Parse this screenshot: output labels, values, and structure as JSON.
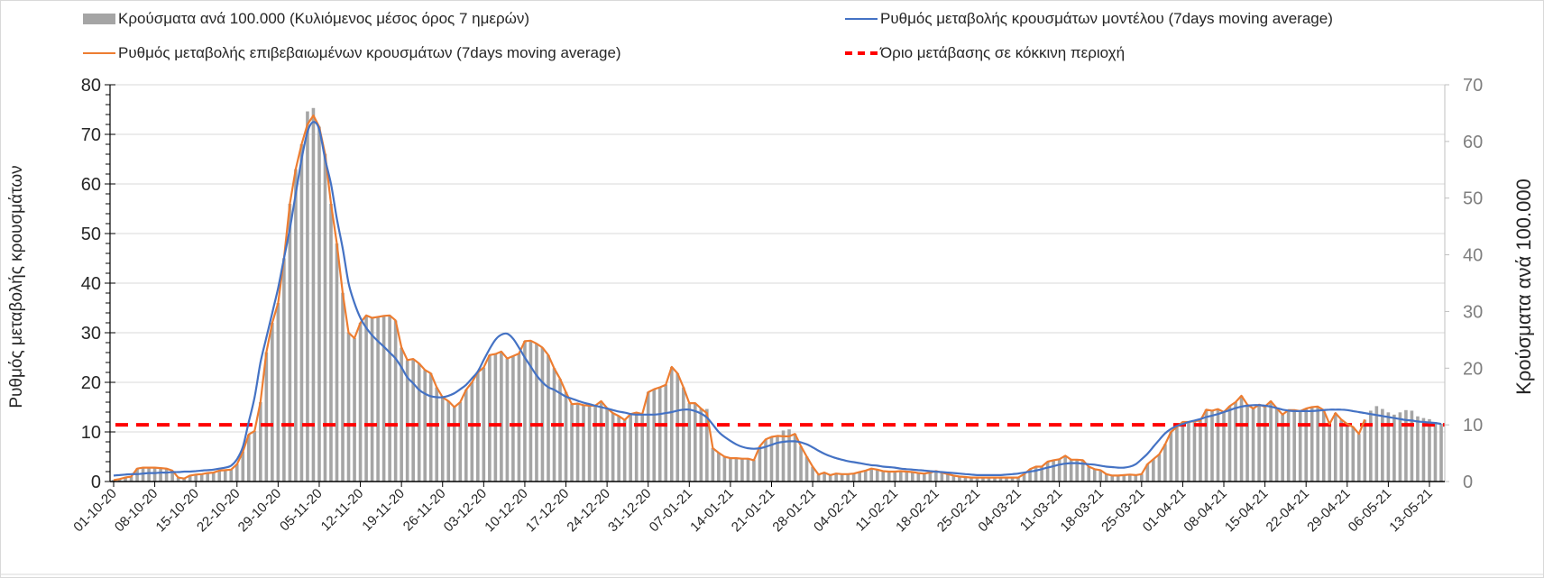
{
  "legend": {
    "bars": "Κρούσματα ανά 100.000 (Κυλιόμενος μέσος όρος 7 ημερών)",
    "model": "Ρυθμός μεταβολής κρουσμάτων μοντέλου (7days moving average)",
    "confirmed": "Ρυθμός μεταβολής επιβεβαιωμένων κρουσμάτων (7days moving average)",
    "threshold": "Όριο μετάβασης σε κόκκινη περιοχή"
  },
  "chart_data": {
    "type": "bar+line",
    "start_date": "01-10-20",
    "ylabel_left": "Ρυθμός μεταβολής κρουσμάτων",
    "ylabel_right": "Κρούσματα ανά 100.000",
    "ylim_left": [
      0,
      80
    ],
    "ylim_right": [
      0,
      70
    ],
    "yticks_left": [
      "0",
      "10",
      "20",
      "30",
      "40",
      "50",
      "60",
      "70",
      "80"
    ],
    "yticks_right": [
      "0",
      "10",
      "20",
      "30",
      "40",
      "50",
      "60",
      "70"
    ],
    "grid": true,
    "legend_position": "top",
    "xtick_every_days": 7,
    "xticks": [
      "01-10-20",
      "08-10-20",
      "15-10-20",
      "22-10-20",
      "29-10-20",
      "05-11-20",
      "12-11-20",
      "19-11-20",
      "26-11-20",
      "03-12-20",
      "10-12-20",
      "17-12-20",
      "24-12-20",
      "31-12-20",
      "07-01-21",
      "14-01-21",
      "21-01-21",
      "28-01-21",
      "04-02-21",
      "11-02-21",
      "18-02-21",
      "25-02-21",
      "04-03-21",
      "11-03-21",
      "18-03-21",
      "25-03-21",
      "01-04-21",
      "08-04-21",
      "15-04-21",
      "22-04-21",
      "29-04-21",
      "06-05-21",
      "13-05-21"
    ],
    "threshold_right_axis": 10,
    "colors": {
      "bars": "#a5a5a5",
      "model": "#4472c4",
      "confirmed": "#ed7d31",
      "threshold": "#ff0000"
    },
    "series": [
      {
        "name": "Κρούσματα ανά 100.000 (Κυλιόμενος μέσος όρος 7 ημερών)",
        "axis": "right",
        "kind": "bar",
        "values": [
          0.3,
          0.4,
          0.7,
          0.9,
          2.3,
          2.5,
          2.5,
          2.5,
          2.4,
          2.3,
          1.9,
          0.7,
          0.5,
          1.1,
          1.2,
          1.3,
          1.5,
          1.6,
          1.9,
          2.0,
          2.1,
          3.1,
          5.3,
          8.3,
          8.9,
          14,
          22.8,
          28,
          31.5,
          39.4,
          49,
          55.1,
          59.5,
          65.3,
          65.9,
          62.6,
          57.8,
          49,
          42,
          33.3,
          26.3,
          25.3,
          28,
          29.3,
          28.9,
          29.1,
          29.2,
          29.3,
          28.4,
          23.6,
          21.4,
          21.6,
          20.8,
          19.7,
          19.1,
          16.6,
          14.9,
          14.2,
          13.1,
          14,
          16.2,
          17.5,
          19.3,
          20.1,
          22.3,
          22.5,
          22.9,
          21.7,
          22.1,
          22.6,
          24.8,
          24.9,
          24.3,
          23.6,
          22.3,
          20,
          18.1,
          15.8,
          13.7,
          13.7,
          13.5,
          13.4,
          13.4,
          14.2,
          13,
          12.1,
          11.6,
          10.9,
          11.9,
          12.2,
          11.9,
          15.8,
          16.3,
          16.6,
          17.1,
          20.2,
          19.1,
          16.6,
          13.8,
          13.8,
          12.9,
          12.8,
          5.9,
          5.1,
          4.4,
          4.1,
          4.1,
          4.0,
          4.0,
          3.8,
          6.2,
          7.4,
          7.9,
          8.1,
          9.0,
          9.2,
          8.4,
          6.2,
          4.4,
          2.6,
          1.2,
          1.6,
          1.1,
          1.4,
          1.3,
          1.3,
          1.4,
          1.7,
          1.9,
          2.3,
          2.1,
          1.8,
          1.8,
          1.8,
          1.8,
          1.8,
          1.7,
          1.5,
          1.4,
          1.6,
          1.8,
          1.6,
          1.3,
          1.1,
          0.9,
          0.8,
          0.7,
          0.7,
          0.7,
          0.7,
          0.7,
          0.7,
          0.7,
          0.7,
          0.7,
          1.3,
          2.2,
          2.6,
          2.6,
          3.5,
          3.8,
          3.9,
          4.6,
          3.9,
          3.9,
          3.8,
          2.6,
          2.2,
          2.0,
          1.3,
          1.1,
          1.1,
          1.1,
          1.2,
          1.1,
          1.3,
          3.1,
          3.9,
          4.8,
          6.6,
          8.8,
          9.6,
          10.5,
          10.5,
          10.7,
          10.8,
          12.7,
          12.5,
          12.8,
          12.3,
          13.3,
          14,
          15.1,
          13.6,
          12.9,
          13.6,
          13.2,
          14.2,
          13,
          11.8,
          12.6,
          12.6,
          12.4,
          12.9,
          13.1,
          13.2,
          12.6,
          10.2,
          12.1,
          10.9,
          10.2,
          9.6,
          8.4,
          10.9,
          12.5,
          13.3,
          12.8,
          12.2,
          11.8,
          12.2,
          12.6,
          12.5,
          11.5,
          11.2,
          11,
          10.5,
          10.2
        ]
      },
      {
        "name": "Ρυθμός μεταβολής επιβεβαιωμένων κρουσμάτων (7days moving average)",
        "axis": "left",
        "kind": "line",
        "values": [
          0.3,
          0.5,
          0.8,
          1.0,
          2.6,
          2.8,
          2.8,
          2.8,
          2.7,
          2.6,
          2.2,
          0.8,
          0.6,
          1.2,
          1.4,
          1.5,
          1.7,
          1.8,
          2.2,
          2.3,
          2.4,
          3.5,
          6,
          9.5,
          10.2,
          16,
          26,
          32,
          36,
          45,
          56,
          63,
          68,
          72,
          73.8,
          71.5,
          66,
          56,
          48,
          38,
          30,
          28.9,
          32,
          33.5,
          33,
          33.2,
          33.4,
          33.5,
          32.5,
          27,
          24.5,
          24.7,
          23.8,
          22.5,
          21.8,
          19,
          17,
          16.2,
          15,
          16,
          18.5,
          20,
          22,
          23,
          25.5,
          25.7,
          26.2,
          24.8,
          25.3,
          25.8,
          28.3,
          28.4,
          27.8,
          27,
          25.5,
          22.8,
          20.7,
          18,
          15.6,
          15.7,
          15.4,
          15.3,
          15.3,
          16.2,
          14.8,
          13.8,
          13.2,
          12.4,
          13.6,
          13.9,
          13.6,
          18,
          18.6,
          19,
          19.5,
          23.1,
          21.8,
          19,
          15.8,
          15.8,
          14.7,
          13.8,
          6.7,
          5.8,
          5.0,
          4.7,
          4.7,
          4.6,
          4.6,
          4.3,
          7.1,
          8.5,
          9,
          9.2,
          9.1,
          9.1,
          9.6,
          7.1,
          5,
          3,
          1.4,
          1.8,
          1.3,
          1.6,
          1.5,
          1.5,
          1.6,
          1.9,
          2.2,
          2.6,
          2.4,
          2.1,
          2,
          2,
          2.1,
          2,
          1.9,
          1.7,
          1.6,
          1.8,
          2.1,
          1.8,
          1.5,
          1.2,
          1,
          0.9,
          0.8,
          0.8,
          0.8,
          0.8,
          0.8,
          0.8,
          0.8,
          0.8,
          0.8,
          1.5,
          2.5,
          3,
          3,
          4,
          4.3,
          4.5,
          5.2,
          4.4,
          4.4,
          4.3,
          3,
          2.5,
          2.3,
          1.5,
          1.2,
          1.2,
          1.3,
          1.4,
          1.3,
          1.5,
          3.5,
          4.5,
          5.5,
          7.5,
          10,
          11,
          12,
          12,
          12.2,
          12.3,
          14.5,
          14.3,
          14.6,
          14,
          15.2,
          16,
          17.3,
          15.5,
          14.7,
          15.5,
          15.1,
          16.2,
          14.8,
          13.5,
          14.4,
          14.4,
          14.2,
          14.7,
          15,
          15.1,
          14.4,
          11.6,
          13.8,
          12.5,
          11.6,
          11,
          9.6,
          12.5
        ]
      },
      {
        "name": "Ρυθμός μεταβολής κρουσμάτων μοντέλου (7days moving average)",
        "axis": "left",
        "kind": "line",
        "values": [
          1.2,
          1.3,
          1.4,
          1.5,
          1.5,
          1.6,
          1.7,
          1.7,
          1.8,
          1.8,
          1.9,
          1.9,
          2.0,
          2.0,
          2.1,
          2.2,
          2.3,
          2.4,
          2.6,
          2.8,
          3.2,
          4.5,
          7,
          12,
          17,
          24,
          29,
          34,
          39,
          45,
          51,
          58,
          65,
          70.5,
          72.5,
          71,
          65,
          60,
          53,
          47,
          40,
          36,
          33,
          31,
          29.5,
          28.3,
          27.2,
          26,
          24.8,
          23,
          21,
          19.8,
          18.5,
          17.7,
          17.2,
          17,
          17,
          17.3,
          17.8,
          18.6,
          19.5,
          20.8,
          22.2,
          24.5,
          26.7,
          28.6,
          29.6,
          29.8,
          28.8,
          27,
          25,
          23.2,
          21.4,
          20,
          19,
          18.5,
          17.8,
          17.1,
          16.7,
          16.3,
          15.9,
          15.6,
          15.3,
          15,
          14.7,
          14.4,
          14.1,
          13.9,
          13.6,
          13.5,
          13.5,
          13.5,
          13.5,
          13.6,
          13.8,
          14,
          14.3,
          14.5,
          14.5,
          14.2,
          13.7,
          12.9,
          11.5,
          10,
          9,
          8.2,
          7.5,
          7,
          6.7,
          6.6,
          6.7,
          7,
          7.4,
          7.8,
          8,
          8.1,
          8.1,
          7.9,
          7.5,
          6.9,
          6.2,
          5.6,
          5.1,
          4.7,
          4.4,
          4.1,
          3.9,
          3.7,
          3.5,
          3.3,
          3.2,
          3.0,
          2.9,
          2.8,
          2.6,
          2.5,
          2.4,
          2.3,
          2.2,
          2.1,
          2.0,
          1.9,
          1.8,
          1.7,
          1.6,
          1.5,
          1.4,
          1.3,
          1.3,
          1.3,
          1.3,
          1.3,
          1.4,
          1.5,
          1.6,
          1.8,
          2,
          2.2,
          2.5,
          2.8,
          3.1,
          3.4,
          3.6,
          3.7,
          3.7,
          3.6,
          3.5,
          3.4,
          3.2,
          3,
          2.9,
          2.8,
          2.8,
          3.0,
          3.5,
          4.5,
          5.6,
          7,
          8.4,
          9.7,
          10.6,
          11.2,
          11.6,
          12,
          12.3,
          12.6,
          13,
          13.3,
          13.6,
          14,
          14.4,
          14.8,
          15.1,
          15.3,
          15.4,
          15.4,
          15.3,
          15.1,
          14.8,
          14.5,
          14.3,
          14.2,
          14.2,
          14.2,
          14.2,
          14.3,
          14.4,
          14.5,
          14.5,
          14.5,
          14.4,
          14.2,
          14,
          13.8,
          13.6,
          13.4,
          13.2,
          13,
          12.8,
          12.6,
          12.4,
          12.3,
          12.1,
          12,
          11.9,
          11.8,
          11.6
        ]
      }
    ]
  }
}
